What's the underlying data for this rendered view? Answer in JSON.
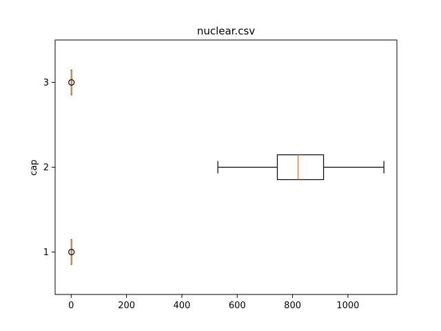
{
  "chart_data": {
    "type": "boxplot",
    "orientation": "horizontal",
    "title": "nuclear.csv",
    "xlabel": "",
    "ylabel": "cap",
    "xlim": [
      -58,
      1177
    ],
    "ylim": [
      0.5,
      3.5
    ],
    "xticks": [
      0,
      200,
      400,
      600,
      800,
      1000
    ],
    "yticks": [
      1,
      2,
      3
    ],
    "grid": false,
    "colors": {
      "box": "#000000",
      "median": "#e08b3a",
      "flier": "#000000"
    },
    "boxes": [
      {
        "position": 1,
        "min": 0,
        "q1": 0,
        "median": 0,
        "q3": 0,
        "max": 0,
        "fliers": [
          1
        ]
      },
      {
        "position": 2,
        "min": 530,
        "q1": 745,
        "median": 820,
        "q3": 912,
        "max": 1130,
        "fliers": []
      },
      {
        "position": 3,
        "min": 0,
        "q1": 0,
        "median": 0,
        "q3": 0,
        "max": 0,
        "fliers": [
          1
        ]
      }
    ]
  }
}
